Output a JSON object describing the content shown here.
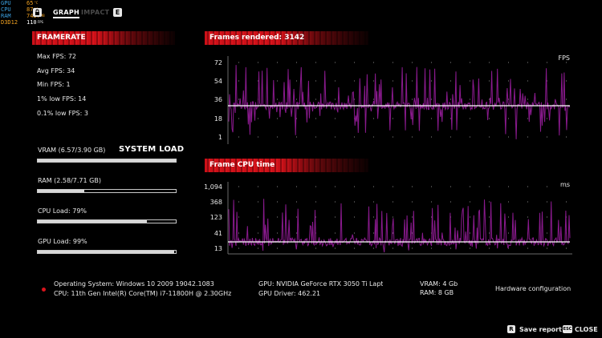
{
  "overlay": {
    "rows": [
      {
        "label": "GPU",
        "value": "65",
        "unit": "°C",
        "label_color": "#3aa0e0",
        "value_color": "#f0a020"
      },
      {
        "label": "CPU",
        "value": "87",
        "unit": "°C",
        "label_color": "#3aa0e0",
        "value_color": "#f0a020"
      },
      {
        "label": "RAM",
        "value": "7437",
        "unit": "MB",
        "label_color": "#3aa0e0",
        "value_color": "#f0a020"
      },
      {
        "label": "D3D12",
        "value": "110",
        "unit": "FPS",
        "label_color": "#f0a020",
        "value_color": "#ffffff"
      }
    ]
  },
  "tabs": {
    "graph": "GRAPH",
    "impact": "IMPACT",
    "e_key": "E"
  },
  "framerate": {
    "header": "FRAMERATE",
    "max": "Max FPS: 72",
    "avg": "Avg FPS: 34",
    "min": "Min FPS: 1",
    "low1": "1% low FPS: 14",
    "low01": "0.1% low FPS: 3"
  },
  "system_load": {
    "title": "SYSTEM LOAD",
    "vram": {
      "label": "VRAM (6.57/3.90 GB)",
      "fill": 1.0
    },
    "ram": {
      "label": "RAM (2.58/7.71 GB)",
      "fill": 0.335
    },
    "cpu": {
      "label": "CPU Load: 79%",
      "fill": 0.79
    },
    "gpu": {
      "label": "GPU Load: 99%",
      "fill": 0.99
    }
  },
  "frames_chart": {
    "header": "Frames rendered: 3142",
    "unit": "FPS",
    "ticks": [
      "72",
      "54",
      "36",
      "18",
      "1"
    ],
    "avg_value": 34,
    "line_color": "#8a1a8e",
    "avg_color": "#ffffff"
  },
  "cpu_chart": {
    "header": "Frame CPU time",
    "unit": "ms",
    "ticks": [
      "1,094",
      "368",
      "123",
      "41",
      "13"
    ],
    "line_color": "#8a1a8e",
    "avg_color": "#ffffff"
  },
  "system_info": {
    "os": "Operating System: Windows 10 2009 19042.1083",
    "cpu": "CPU: 11th Gen Intel(R) Core(TM) i7-11800H @ 2.30GHz",
    "gpu": "GPU: NVIDIA GeForce RTX 3050 Ti Laptop GPU",
    "gpu_driver": "GPU Driver: 462.21",
    "vram": "VRAM: 4 Gb",
    "ram": "RAM: 8 GB",
    "hw_config": "Hardware configuration"
  },
  "footer": {
    "save_key": "R",
    "save_label": "Save report",
    "close_key": "ESC",
    "close_label": "CLOSE"
  }
}
